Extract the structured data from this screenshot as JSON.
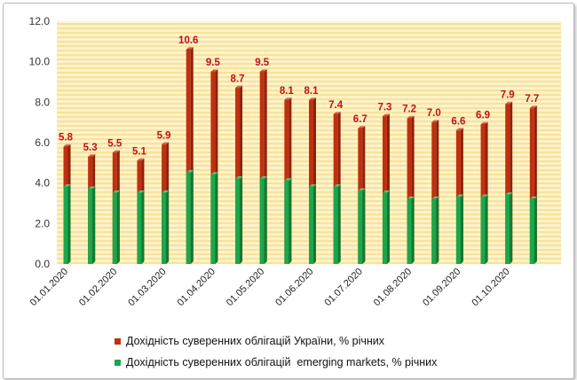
{
  "chart_data": {
    "type": "bar",
    "ylim": [
      0,
      12
    ],
    "yticks": [
      "0.0",
      "2.0",
      "4.0",
      "6.0",
      "8.0",
      "10.0",
      "12.0"
    ],
    "xlabels": [
      "01.01.2020",
      "01.02.2020",
      "01.03.2020",
      "01.04.2020",
      "01.05.2020",
      "01.06.2020",
      "01.07.2020",
      "01.08.2020",
      "01.09.2020",
      "01.10.2020"
    ],
    "grid": true,
    "legend_position": "bottom",
    "series": [
      {
        "name": "Дохідність суверенних облігацій України, % річних",
        "color": "#c0300f",
        "values": [
          5.8,
          5.3,
          5.5,
          5.1,
          5.9,
          10.6,
          9.5,
          8.7,
          9.5,
          8.1,
          8.1,
          7.4,
          6.7,
          7.3,
          7.2,
          7.0,
          6.6,
          6.9,
          7.9,
          7.7
        ],
        "labels": [
          "5.8",
          "5.3",
          "5.5",
          "5.1",
          "5.9",
          "10.6",
          "9.5",
          "8.7",
          "9.5",
          "8.1",
          "8.1",
          "7.4",
          "6.7",
          "7.3",
          "7.2",
          "7.0",
          "6.6",
          "6.9",
          "7.9",
          "7.7"
        ]
      },
      {
        "name": "Дохідність суверенних облігацій  emerging markets, % річних",
        "color": "#1aa84a",
        "values": [
          3.8,
          3.7,
          3.5,
          3.5,
          3.5,
          4.5,
          4.4,
          4.2,
          4.2,
          4.1,
          3.8,
          3.8,
          3.6,
          3.5,
          3.2,
          3.2,
          3.3,
          3.3,
          3.4,
          3.2
        ]
      }
    ]
  }
}
